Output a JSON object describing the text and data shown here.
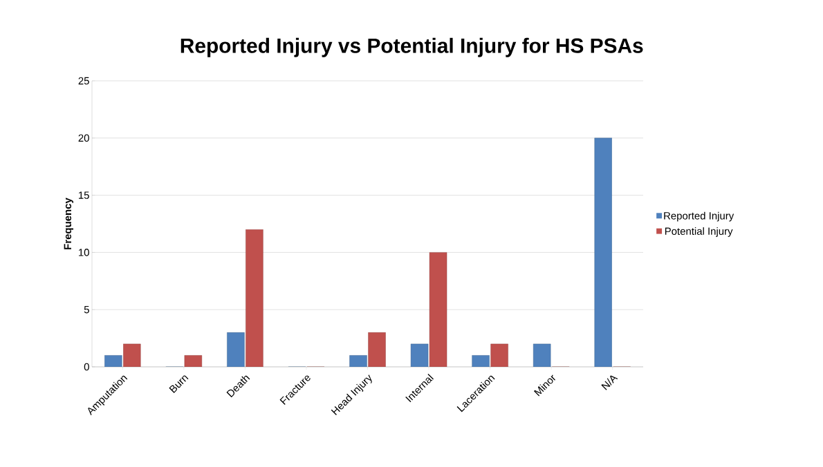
{
  "chart_data": {
    "type": "bar",
    "title": "Reported Injury vs Potential Injury for HS PSAs",
    "ylabel": "Frequency",
    "categories": [
      "Amputation",
      "Burn",
      "Death",
      "Fracture",
      "Head Injury",
      "Internal",
      "Laceration",
      "Minor",
      "N/A"
    ],
    "series": [
      {
        "name": "Reported Injury",
        "color": "#4f81bd",
        "values": [
          1,
          0,
          3,
          0,
          1,
          2,
          1,
          2,
          20
        ]
      },
      {
        "name": "Potential Injury",
        "color": "#c0504d",
        "values": [
          2,
          1,
          12,
          0,
          3,
          10,
          2,
          0,
          0
        ]
      }
    ],
    "ylim": [
      0,
      25
    ],
    "yticks": [
      0,
      5,
      10,
      15,
      20,
      25
    ],
    "grid": "y",
    "legend": "right"
  }
}
